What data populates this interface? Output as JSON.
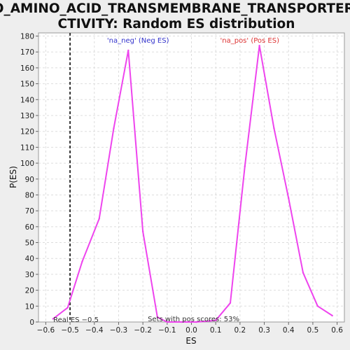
{
  "chart_data": {
    "type": "line",
    "title_lines": [
      "GO_AMINO_ACID_TRANSMEMBRANE_TRANSPORTER_A",
      "CTIVITY: Random ES distribution"
    ],
    "xlabel": "ES",
    "ylabel": "P(ES)",
    "xlim": [
      -0.63,
      0.63
    ],
    "ylim": [
      0,
      182
    ],
    "xticks": [
      -0.6,
      -0.5,
      -0.4,
      -0.3,
      -0.2,
      -0.1,
      0.0,
      0.1,
      0.2,
      0.3,
      0.4,
      0.5,
      0.6
    ],
    "xtick_labels": [
      "−0.6",
      "−0.5",
      "−0.4",
      "−0.3",
      "−0.2",
      "−0.1",
      "0.0",
      "0.1",
      "0.2",
      "0.3",
      "0.4",
      "0.5",
      "0.6"
    ],
    "yticks": [
      0,
      10,
      20,
      30,
      40,
      50,
      60,
      70,
      80,
      90,
      100,
      110,
      120,
      130,
      140,
      150,
      160,
      170,
      180
    ],
    "grid": true,
    "series": [
      {
        "name": "Random ES distribution",
        "color": "#ee44ee",
        "x": [
          -0.57,
          -0.51,
          -0.45,
          -0.38,
          -0.32,
          -0.26,
          -0.2,
          -0.14,
          -0.1,
          -0.04,
          0.02,
          0.1,
          0.16,
          0.22,
          0.28,
          0.34,
          0.4,
          0.46,
          0.52,
          0.58
        ],
        "y": [
          2,
          9,
          38,
          65,
          122,
          171,
          57,
          3,
          0,
          0,
          0,
          1,
          12,
          98,
          174,
          122,
          78,
          31,
          10,
          4
        ]
      }
    ],
    "real_es": {
      "value": -0.5,
      "label": "Real ES −0.5",
      "color": "#333333"
    },
    "annotations": {
      "neg": {
        "text": "'na_neg' (Neg ES)",
        "color": "#3333cc",
        "x": -0.22
      },
      "pos": {
        "text": "'na_pos' (Pos ES)",
        "color": "#dd3333",
        "x": 0.24
      },
      "pos_scores": {
        "text": "Sets with pos scores: 53%",
        "color": "#333333",
        "x": -0.18
      }
    }
  }
}
